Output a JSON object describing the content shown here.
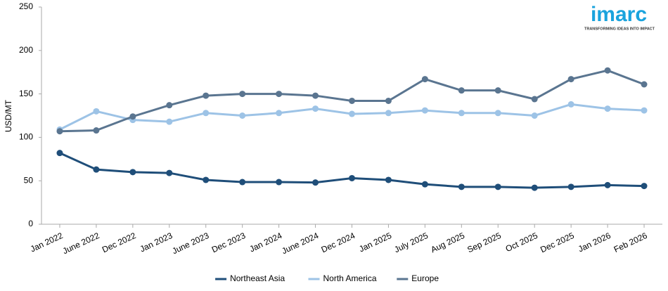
{
  "chart_data": {
    "type": "line",
    "logo": "imarc",
    "logo_tagline": "TRANSFORMING IDEAS INTO IMPACT",
    "y_label": "USD/MT",
    "categories": [
      "Jan 2022",
      "June 2022",
      "Dec 2022",
      "Jan 2023",
      "June 2023",
      "Dec 2023",
      "Jan 2024",
      "June 2024",
      "Dec 2024",
      "Jan 2025",
      "July 2025",
      "Aug 2025",
      "Sep 2025",
      "Oct 2025",
      "Dec 2025",
      "Jan 2026",
      "Feb 2026"
    ],
    "series": [
      {
        "name": "Northeast Asia",
        "color": "#1f4e79",
        "values": [
          82,
          63,
          60,
          59,
          51,
          48.5,
          48.5,
          48,
          53,
          51,
          46,
          43,
          43,
          42,
          43,
          45,
          44
        ]
      },
      {
        "name": "North America",
        "color": "#9dc3e6",
        "values": [
          109,
          130,
          120,
          118,
          128,
          125,
          128,
          133,
          127,
          128,
          131,
          128,
          128,
          125,
          138,
          133,
          131
        ]
      },
      {
        "name": "Europe",
        "color": "#5a7590",
        "values": [
          107,
          108,
          124,
          137,
          148,
          150,
          150,
          148,
          142,
          142,
          167,
          154,
          154,
          144,
          167,
          177,
          161
        ]
      }
    ],
    "ylim": [
      0,
      250
    ],
    "yticks": [
      0,
      50,
      100,
      150,
      200,
      250
    ],
    "grid": false,
    "legend": "bottom"
  }
}
